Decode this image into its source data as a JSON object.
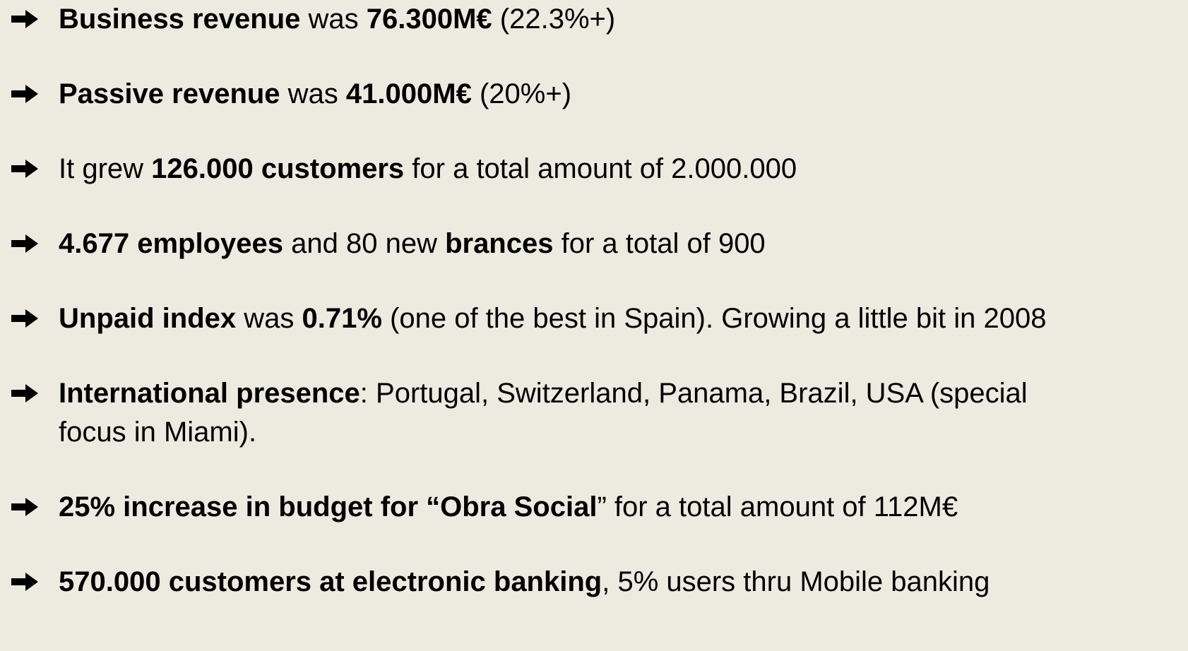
{
  "items": [
    {
      "runs": [
        {
          "text": "Business revenue",
          "bold": true
        },
        {
          "text": " was ",
          "bold": false
        },
        {
          "text": "76.300M€",
          "bold": true
        },
        {
          "text": " (22.3%+)",
          "bold": false
        }
      ]
    },
    {
      "runs": [
        {
          "text": "Passive revenue",
          "bold": true
        },
        {
          "text": " was ",
          "bold": false
        },
        {
          "text": "41.000M€",
          "bold": true
        },
        {
          "text": " (20%+)",
          "bold": false
        }
      ]
    },
    {
      "runs": [
        {
          "text": "It grew ",
          "bold": false
        },
        {
          "text": "126.000 customers",
          "bold": true
        },
        {
          "text": " for a total amount of 2.000.000",
          "bold": false
        }
      ]
    },
    {
      "runs": [
        {
          "text": "4.677 employees",
          "bold": true
        },
        {
          "text": " and 80 new ",
          "bold": false
        },
        {
          "text": "brances",
          "bold": true
        },
        {
          "text": " for a total of 900",
          "bold": false
        }
      ]
    },
    {
      "runs": [
        {
          "text": "Unpaid index",
          "bold": true
        },
        {
          "text": " was ",
          "bold": false
        },
        {
          "text": "0.71%",
          "bold": true
        },
        {
          "text": " (one of the best in Spain). Growing a little bit in 2008",
          "bold": false
        }
      ]
    },
    {
      "runs": [
        {
          "text": "International presence",
          "bold": true
        },
        {
          "text": ": Portugal, Switzerland, Panama, Brazil, USA (special focus in Miami).",
          "bold": false
        }
      ]
    },
    {
      "runs": [
        {
          "text": "25% increase in budget for “Obra Social",
          "bold": true
        },
        {
          "text": "” for a total amount of 112M€",
          "bold": false
        }
      ]
    },
    {
      "runs": [
        {
          "text": "570.000 customers at electronic banking",
          "bold": true
        },
        {
          "text": ", 5% users thru Mobile banking",
          "bold": false
        }
      ]
    }
  ]
}
